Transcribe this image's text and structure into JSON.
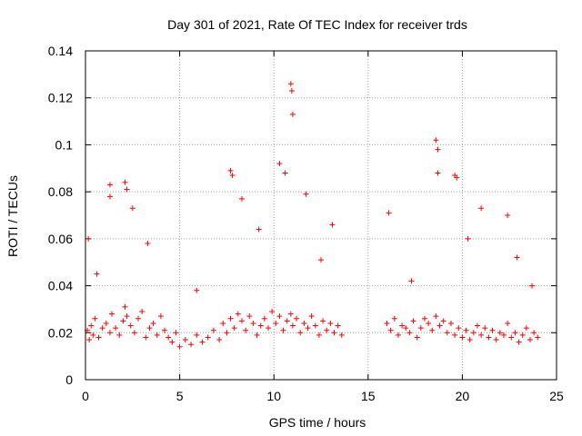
{
  "chart_data": {
    "type": "scatter",
    "title": "Day 301 of 2021, Rate Of TEC Index for receiver trds",
    "xlabel": "GPS time / hours",
    "ylabel": "ROTI / TECUs",
    "xlim": [
      0,
      25
    ],
    "ylim": [
      0,
      0.14
    ],
    "xticks": [
      "0",
      "5",
      "10",
      "15",
      "20",
      "25"
    ],
    "yticks": [
      "0",
      "0.02",
      "0.04",
      "0.06",
      "0.08",
      "0.1",
      "0.12",
      "0.14"
    ],
    "grid": true,
    "marker": "plus",
    "color": "#ff0000",
    "x": [
      0.1,
      0.2,
      0.3,
      0.4,
      0.5,
      0.7,
      0.9,
      1.1,
      1.3,
      1.4,
      1.6,
      1.8,
      2.0,
      2.1,
      2.2,
      2.4,
      2.6,
      2.8,
      3.0,
      3.2,
      3.4,
      3.6,
      3.8,
      4.0,
      4.2,
      4.4,
      4.6,
      4.8,
      5.0,
      5.3,
      5.6,
      5.9,
      6.2,
      6.5,
      6.8,
      7.1,
      7.3,
      7.5,
      7.7,
      7.9,
      8.1,
      8.3,
      8.5,
      8.7,
      8.9,
      9.1,
      9.3,
      9.5,
      9.7,
      9.9,
      10.1,
      10.3,
      10.5,
      10.7,
      10.9,
      11.0,
      11.2,
      11.4,
      11.6,
      11.8,
      12.0,
      12.2,
      12.4,
      12.6,
      12.8,
      13.0,
      13.2,
      13.4,
      13.6,
      16.0,
      16.2,
      16.4,
      16.6,
      16.8,
      17.0,
      17.2,
      17.4,
      17.6,
      17.8,
      18.0,
      18.2,
      18.4,
      18.6,
      18.8,
      19.0,
      19.2,
      19.4,
      19.6,
      19.8,
      20.0,
      20.2,
      20.4,
      20.6,
      20.8,
      21.0,
      21.2,
      21.4,
      21.6,
      21.8,
      22.0,
      22.2,
      22.4,
      22.6,
      22.8,
      23.0,
      23.2,
      23.4,
      23.6,
      23.8,
      24.0,
      0.15,
      1.3,
      1.3,
      2.1,
      2.2,
      2.5,
      7.7,
      7.8,
      8.3,
      10.3,
      10.6,
      10.9,
      10.95,
      11.0,
      11.7,
      13.1,
      16.1,
      18.6,
      18.7,
      18.7,
      19.6,
      19.7,
      21.0,
      22.4,
      0.6,
      3.3,
      5.9,
      9.2,
      12.5,
      17.3,
      20.3,
      22.9,
      23.7
    ],
    "y": [
      0.021,
      0.017,
      0.023,
      0.019,
      0.026,
      0.018,
      0.022,
      0.024,
      0.02,
      0.028,
      0.022,
      0.019,
      0.025,
      0.031,
      0.027,
      0.023,
      0.02,
      0.026,
      0.029,
      0.018,
      0.022,
      0.024,
      0.019,
      0.027,
      0.021,
      0.018,
      0.016,
      0.02,
      0.014,
      0.017,
      0.015,
      0.019,
      0.016,
      0.018,
      0.021,
      0.017,
      0.024,
      0.02,
      0.026,
      0.022,
      0.028,
      0.025,
      0.021,
      0.027,
      0.024,
      0.019,
      0.023,
      0.026,
      0.022,
      0.029,
      0.024,
      0.027,
      0.021,
      0.025,
      0.028,
      0.023,
      0.026,
      0.02,
      0.024,
      0.022,
      0.027,
      0.023,
      0.019,
      0.025,
      0.021,
      0.024,
      0.02,
      0.023,
      0.019,
      0.024,
      0.021,
      0.026,
      0.019,
      0.023,
      0.022,
      0.02,
      0.025,
      0.018,
      0.022,
      0.026,
      0.024,
      0.021,
      0.027,
      0.023,
      0.025,
      0.02,
      0.024,
      0.019,
      0.022,
      0.018,
      0.021,
      0.017,
      0.02,
      0.023,
      0.019,
      0.022,
      0.018,
      0.021,
      0.017,
      0.02,
      0.019,
      0.024,
      0.018,
      0.02,
      0.016,
      0.019,
      0.022,
      0.017,
      0.02,
      0.018,
      0.06,
      0.083,
      0.078,
      0.084,
      0.081,
      0.073,
      0.089,
      0.087,
      0.077,
      0.092,
      0.088,
      0.126,
      0.123,
      0.113,
      0.079,
      0.066,
      0.071,
      0.102,
      0.098,
      0.088,
      0.087,
      0.086,
      0.073,
      0.07,
      0.045,
      0.058,
      0.038,
      0.064,
      0.051,
      0.042,
      0.06,
      0.052,
      0.04
    ]
  }
}
